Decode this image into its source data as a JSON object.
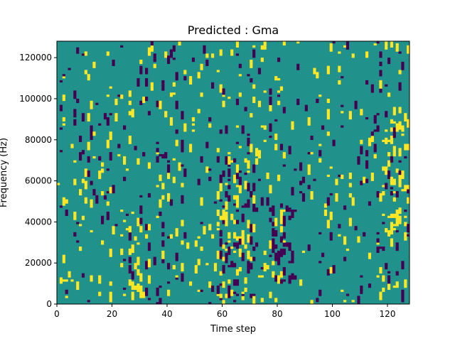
{
  "chart_data": {
    "type": "heatmap",
    "title": "Predicted : Gma",
    "xlabel": "Time step",
    "ylabel": "Frequency (Hz)",
    "xlim": [
      0,
      128
    ],
    "ylim": [
      0,
      128000
    ],
    "x_ticks": [
      "0",
      "20",
      "40",
      "60",
      "80",
      "100",
      "120"
    ],
    "y_ticks": [
      "0",
      "20000",
      "40000",
      "60000",
      "80000",
      "100000",
      "120000"
    ],
    "colormap": "viridis",
    "levels": [
      {
        "level": "low",
        "color": "#440154"
      },
      {
        "level": "mid",
        "color": "#21918c"
      },
      {
        "level": "high",
        "color": "#fde725"
      }
    ],
    "background_level": "mid",
    "grid_shape": [
      128,
      128
    ],
    "cell_frequency_step_hz": 1000,
    "dense_regions": [
      {
        "x_range": [
          26,
          34
        ],
        "freq_range_hz": [
          0,
          40000
        ],
        "dominant": "high"
      },
      {
        "x_range": [
          58,
          72
        ],
        "freq_range_hz": [
          0,
          70000
        ],
        "dominant": "mixed"
      },
      {
        "x_range": [
          78,
          86
        ],
        "freq_range_hz": [
          10000,
          50000
        ],
        "dominant": "low"
      },
      {
        "x_range": [
          118,
          128
        ],
        "freq_range_hz": [
          30000,
          90000
        ],
        "dominant": "high"
      }
    ]
  }
}
